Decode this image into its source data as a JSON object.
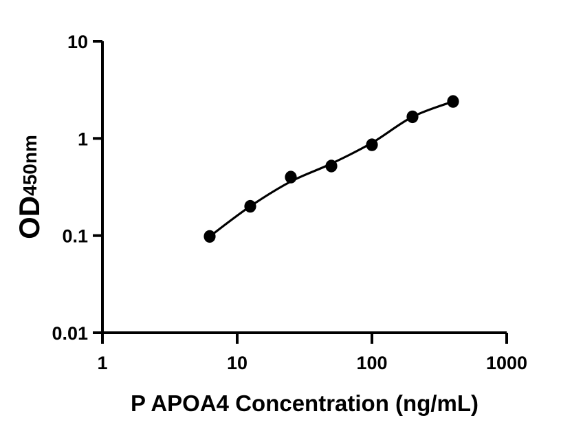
{
  "figure": {
    "background_color": "#ffffff",
    "axis_color": "#000000"
  },
  "chart_data": {
    "type": "scatter",
    "title": "",
    "xlabel": "P APOA4 Concentration (ng/mL)",
    "ylabel": "OD",
    "ylabel_subscript": "450nm",
    "x_scale": "log",
    "y_scale": "log",
    "xlim": [
      1,
      1000
    ],
    "ylim": [
      0.01,
      10
    ],
    "x_ticks": [
      1,
      10,
      100,
      1000
    ],
    "x_tick_labels": [
      "1",
      "10",
      "100",
      "1000"
    ],
    "y_ticks": [
      10,
      1,
      0.1,
      0.01
    ],
    "y_tick_labels": [
      "10",
      "1",
      "0.1",
      "0.01"
    ],
    "grid": false,
    "legend": null,
    "series": [
      {
        "marker": "filled-circle",
        "color": "#000000",
        "points": [
          {
            "x": 6.25,
            "y": 0.098
          },
          {
            "x": 12.5,
            "y": 0.2
          },
          {
            "x": 25,
            "y": 0.4
          },
          {
            "x": 50,
            "y": 0.52
          },
          {
            "x": 100,
            "y": 0.86
          },
          {
            "x": 200,
            "y": 1.67
          },
          {
            "x": 400,
            "y": 2.4
          }
        ]
      }
    ],
    "fit_line": {
      "color": "#000000",
      "points": [
        {
          "x": 6.25,
          "y": 0.098
        },
        {
          "x": 12.5,
          "y": 0.2
        },
        {
          "x": 25,
          "y": 0.36
        },
        {
          "x": 50,
          "y": 0.55
        },
        {
          "x": 100,
          "y": 0.9
        },
        {
          "x": 200,
          "y": 1.67
        },
        {
          "x": 400,
          "y": 2.4
        }
      ]
    }
  }
}
